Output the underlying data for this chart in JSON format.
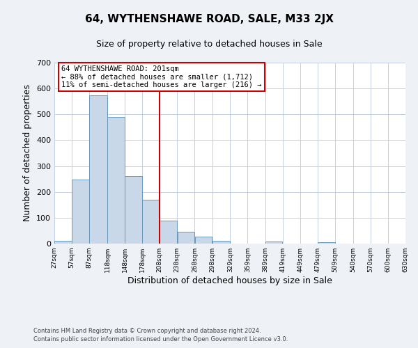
{
  "title": "64, WYTHENSHAWE ROAD, SALE, M33 2JX",
  "subtitle": "Size of property relative to detached houses in Sale",
  "xlabel": "Distribution of detached houses by size in Sale",
  "ylabel": "Number of detached properties",
  "bar_left_edges": [
    27,
    57,
    87,
    118,
    148,
    178,
    208,
    238,
    268,
    298,
    329,
    359,
    389,
    419,
    449,
    479,
    509,
    540,
    570,
    600
  ],
  "bar_widths": [
    30,
    30,
    31,
    30,
    30,
    30,
    30,
    30,
    30,
    31,
    30,
    30,
    30,
    30,
    30,
    30,
    31,
    30,
    30,
    30
  ],
  "bar_heights": [
    12,
    247,
    574,
    491,
    260,
    170,
    89,
    46,
    27,
    12,
    0,
    0,
    7,
    0,
    0,
    5,
    0,
    0,
    0,
    0
  ],
  "tick_labels": [
    "27sqm",
    "57sqm",
    "87sqm",
    "118sqm",
    "148sqm",
    "178sqm",
    "208sqm",
    "238sqm",
    "268sqm",
    "298sqm",
    "329sqm",
    "359sqm",
    "389sqm",
    "419sqm",
    "449sqm",
    "479sqm",
    "509sqm",
    "540sqm",
    "570sqm",
    "600sqm",
    "630sqm"
  ],
  "bar_color": "#c8d8e8",
  "bar_edgecolor": "#6699bb",
  "vline_x": 208,
  "vline_color": "#cc0000",
  "ylim": [
    0,
    700
  ],
  "yticks": [
    0,
    100,
    200,
    300,
    400,
    500,
    600,
    700
  ],
  "annotation_title": "64 WYTHENSHAWE ROAD: 201sqm",
  "annotation_line1": "← 88% of detached houses are smaller (1,712)",
  "annotation_line2": "11% of semi-detached houses are larger (216) →",
  "footer1": "Contains HM Land Registry data © Crown copyright and database right 2024.",
  "footer2": "Contains public sector information licensed under the Open Government Licence v3.0.",
  "background_color": "#eef2f7",
  "plot_bg_color": "#ffffff",
  "grid_color": "#c5d0de"
}
